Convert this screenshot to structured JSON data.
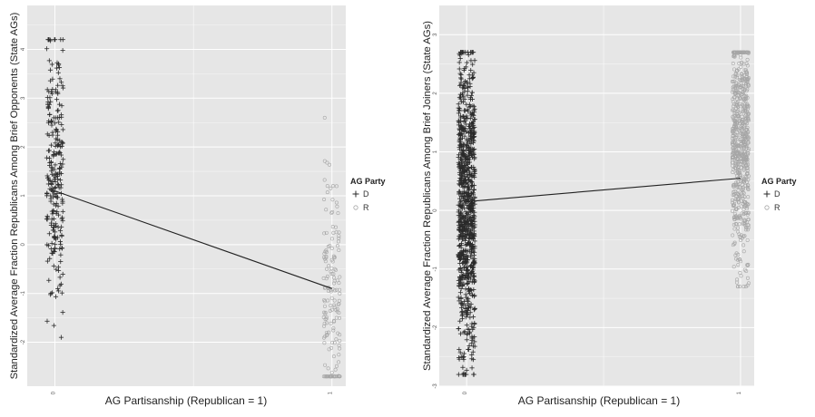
{
  "chart_data": [
    {
      "type": "scatter",
      "xlabel": "AG Partisanship (Republican = 1)",
      "ylabel": "Standardized Average Fraction Republicans Among Brief Opponents (State AGs)",
      "x_ticks": [
        "0",
        "1"
      ],
      "y_ticks": [
        -2,
        -1,
        0,
        1,
        2,
        3,
        4
      ],
      "ylim": [
        -2.9,
        4.9
      ],
      "xlim": [
        -0.1,
        1.05
      ],
      "legend": {
        "title": "AG Party",
        "entries": [
          "D",
          "R"
        ],
        "placement": "right"
      },
      "colors": {
        "D": "#2a2a2a",
        "R": "#a6a6a6",
        "panel": "#e6e6e6",
        "grid": "#ffffff",
        "line": "#222222"
      },
      "series": [
        {
          "name": "D",
          "x": 0,
          "marker": "plus",
          "n": 260,
          "y_range": [
            -1.9,
            4.2
          ],
          "y_center": 1.5
        },
        {
          "name": "R",
          "x": 1,
          "marker": "circle",
          "n": 160,
          "y_range": [
            -2.7,
            2.6
          ],
          "y_center": -0.9
        }
      ],
      "fit_line": {
        "x": [
          0,
          1
        ],
        "y": [
          1.1,
          -0.9
        ]
      }
    },
    {
      "type": "scatter",
      "xlabel": "AG Partisanship (Republican = 1)",
      "ylabel": "Standardized Average Fraction Republicans Among Brief Joiners (State AGs)",
      "x_ticks": [
        "0",
        "1"
      ],
      "y_ticks": [
        -3,
        -2,
        -1,
        0,
        1,
        2,
        3
      ],
      "ylim": [
        -3.0,
        3.5
      ],
      "xlim": [
        -0.1,
        1.05
      ],
      "legend": {
        "title": "AG Party",
        "entries": [
          "D",
          "R"
        ],
        "placement": "right"
      },
      "colors": {
        "D": "#2a2a2a",
        "R": "#a6a6a6",
        "panel": "#e6e6e6",
        "grid": "#ffffff",
        "line": "#222222"
      },
      "series": [
        {
          "name": "D",
          "x": 0,
          "marker": "plus",
          "n": 900,
          "y_range": [
            -2.8,
            2.7
          ],
          "y_center": 0.0
        },
        {
          "name": "R",
          "x": 1,
          "marker": "circle",
          "n": 700,
          "y_range": [
            -1.3,
            2.7
          ],
          "y_center": 1.2
        }
      ],
      "fit_line": {
        "x": [
          0,
          1
        ],
        "y": [
          0.15,
          0.55
        ]
      }
    }
  ]
}
